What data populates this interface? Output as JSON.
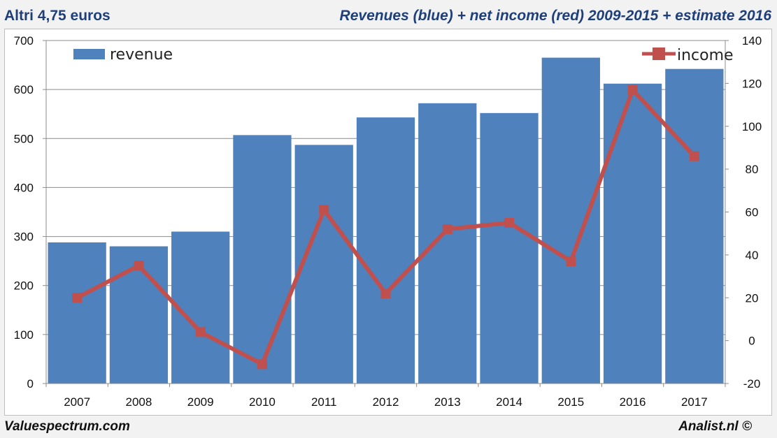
{
  "header": {
    "left_title": "Altri 4,75 euros",
    "right_title": "Revenues (blue) + net income (red) 2009-2015 + estimate 2016"
  },
  "footer": {
    "left": "Valuespectrum.com",
    "right": "Analist.nl ©"
  },
  "colors": {
    "revenue_bar": "#4f81bd",
    "income_line": "#c0504d",
    "title": "#1f3f7a"
  },
  "chart_data": {
    "type": "bar+line",
    "categories": [
      "2007",
      "2008",
      "2009",
      "2010",
      "2011",
      "2012",
      "2013",
      "2014",
      "2015",
      "2016",
      "2017"
    ],
    "series": [
      {
        "name": "revenue",
        "type": "bar",
        "axis": "left",
        "values": [
          288,
          280,
          310,
          507,
          487,
          543,
          572,
          552,
          665,
          612,
          642
        ]
      },
      {
        "name": "income",
        "type": "line",
        "axis": "right",
        "values": [
          20,
          35,
          4,
          -11,
          61,
          22,
          52,
          55,
          37,
          117,
          86
        ]
      }
    ],
    "left_axis": {
      "min": 0,
      "max": 700,
      "step": 100,
      "ticks": [
        "0",
        "100",
        "200",
        "300",
        "400",
        "500",
        "600",
        "700"
      ]
    },
    "right_axis": {
      "min": -20,
      "max": 140,
      "step": 20,
      "ticks": [
        "-20",
        "0",
        "20",
        "40",
        "60",
        "80",
        "100",
        "120",
        "140"
      ]
    },
    "grid": true,
    "legend": [
      {
        "label": "revenue",
        "placement": "top-left"
      },
      {
        "label": "income",
        "placement": "top-right"
      }
    ]
  }
}
